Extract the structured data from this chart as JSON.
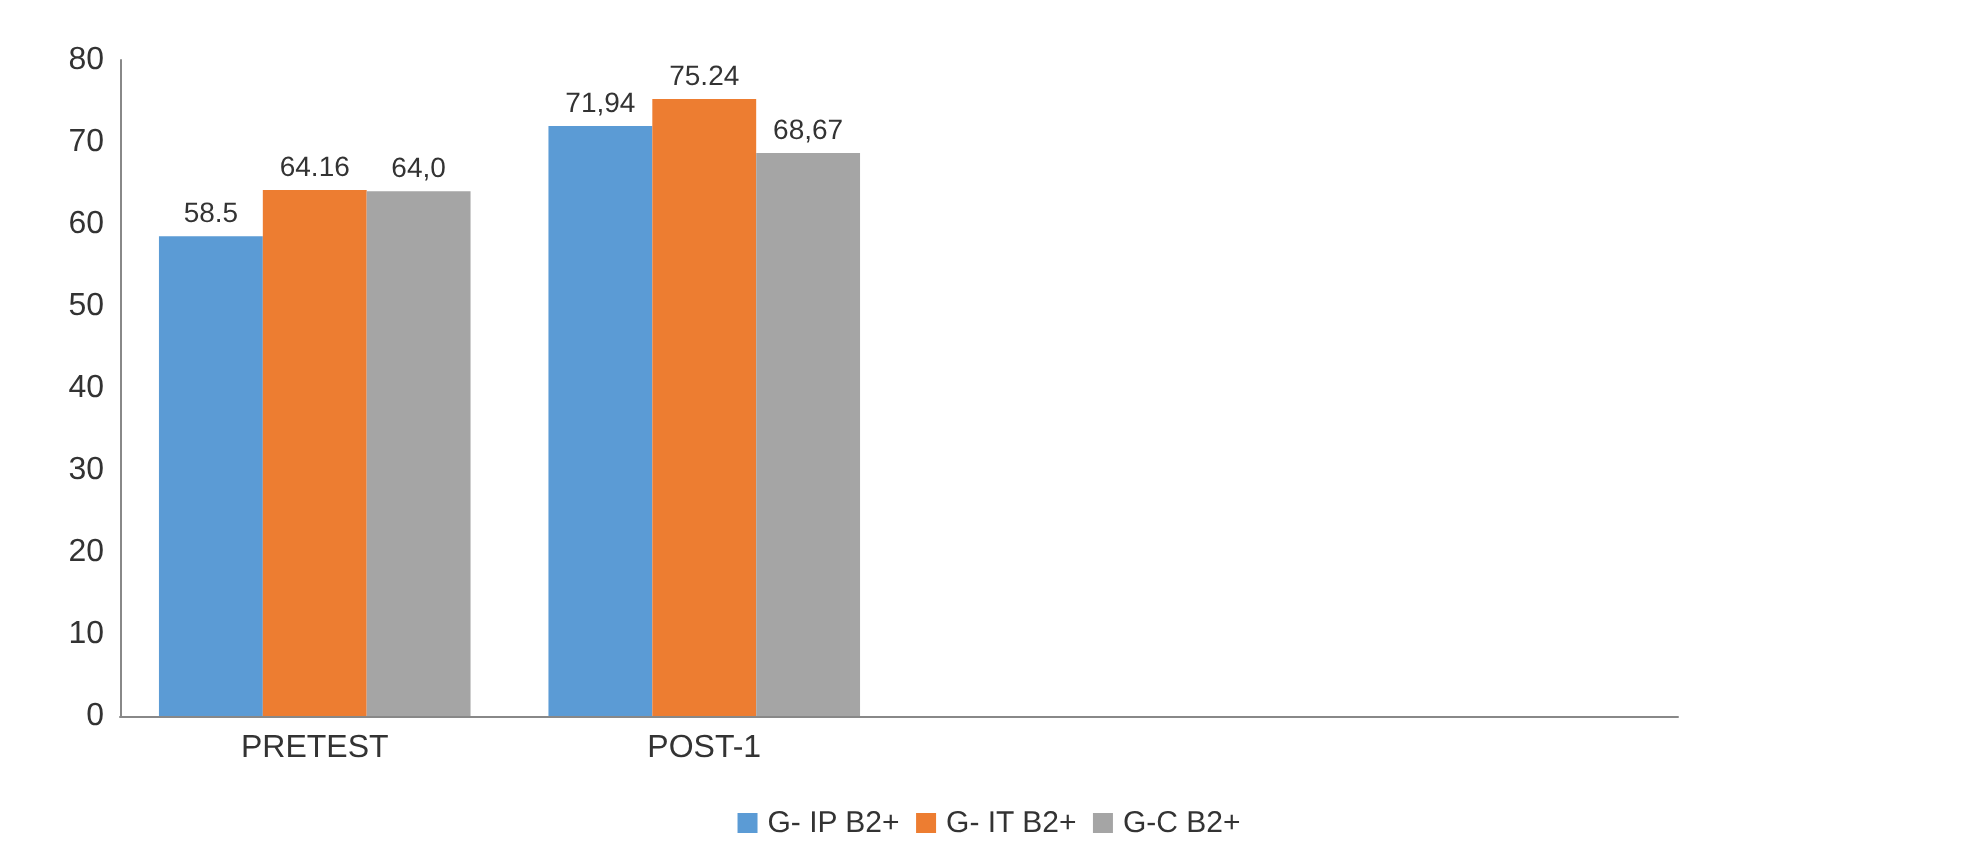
{
  "chart_data": {
    "type": "bar",
    "categories": [
      "PRETEST",
      "POST-1",
      null,
      null
    ],
    "series": [
      {
        "name": "G- IP B2+",
        "color": "#5b9bd5",
        "values": [
          58.5,
          71.94,
          null,
          null
        ],
        "value_labels": [
          "58.5",
          "71,94",
          null,
          null
        ]
      },
      {
        "name": "G- IT B2+",
        "color": "#ed7d31",
        "values": [
          64.16,
          75.24,
          null,
          null
        ],
        "value_labels": [
          "64.16",
          "75.24",
          null,
          null
        ]
      },
      {
        "name": "G-C B2+",
        "color": "#a5a5a5",
        "values": [
          64.0,
          68.67,
          null,
          null
        ],
        "value_labels": [
          "64,0",
          "68,67",
          null,
          null
        ]
      }
    ],
    "ylim": [
      0,
      80
    ],
    "yticks": [
      0,
      10,
      20,
      30,
      40,
      50,
      60,
      70,
      80
    ],
    "grid": false,
    "legend": "bottom"
  }
}
